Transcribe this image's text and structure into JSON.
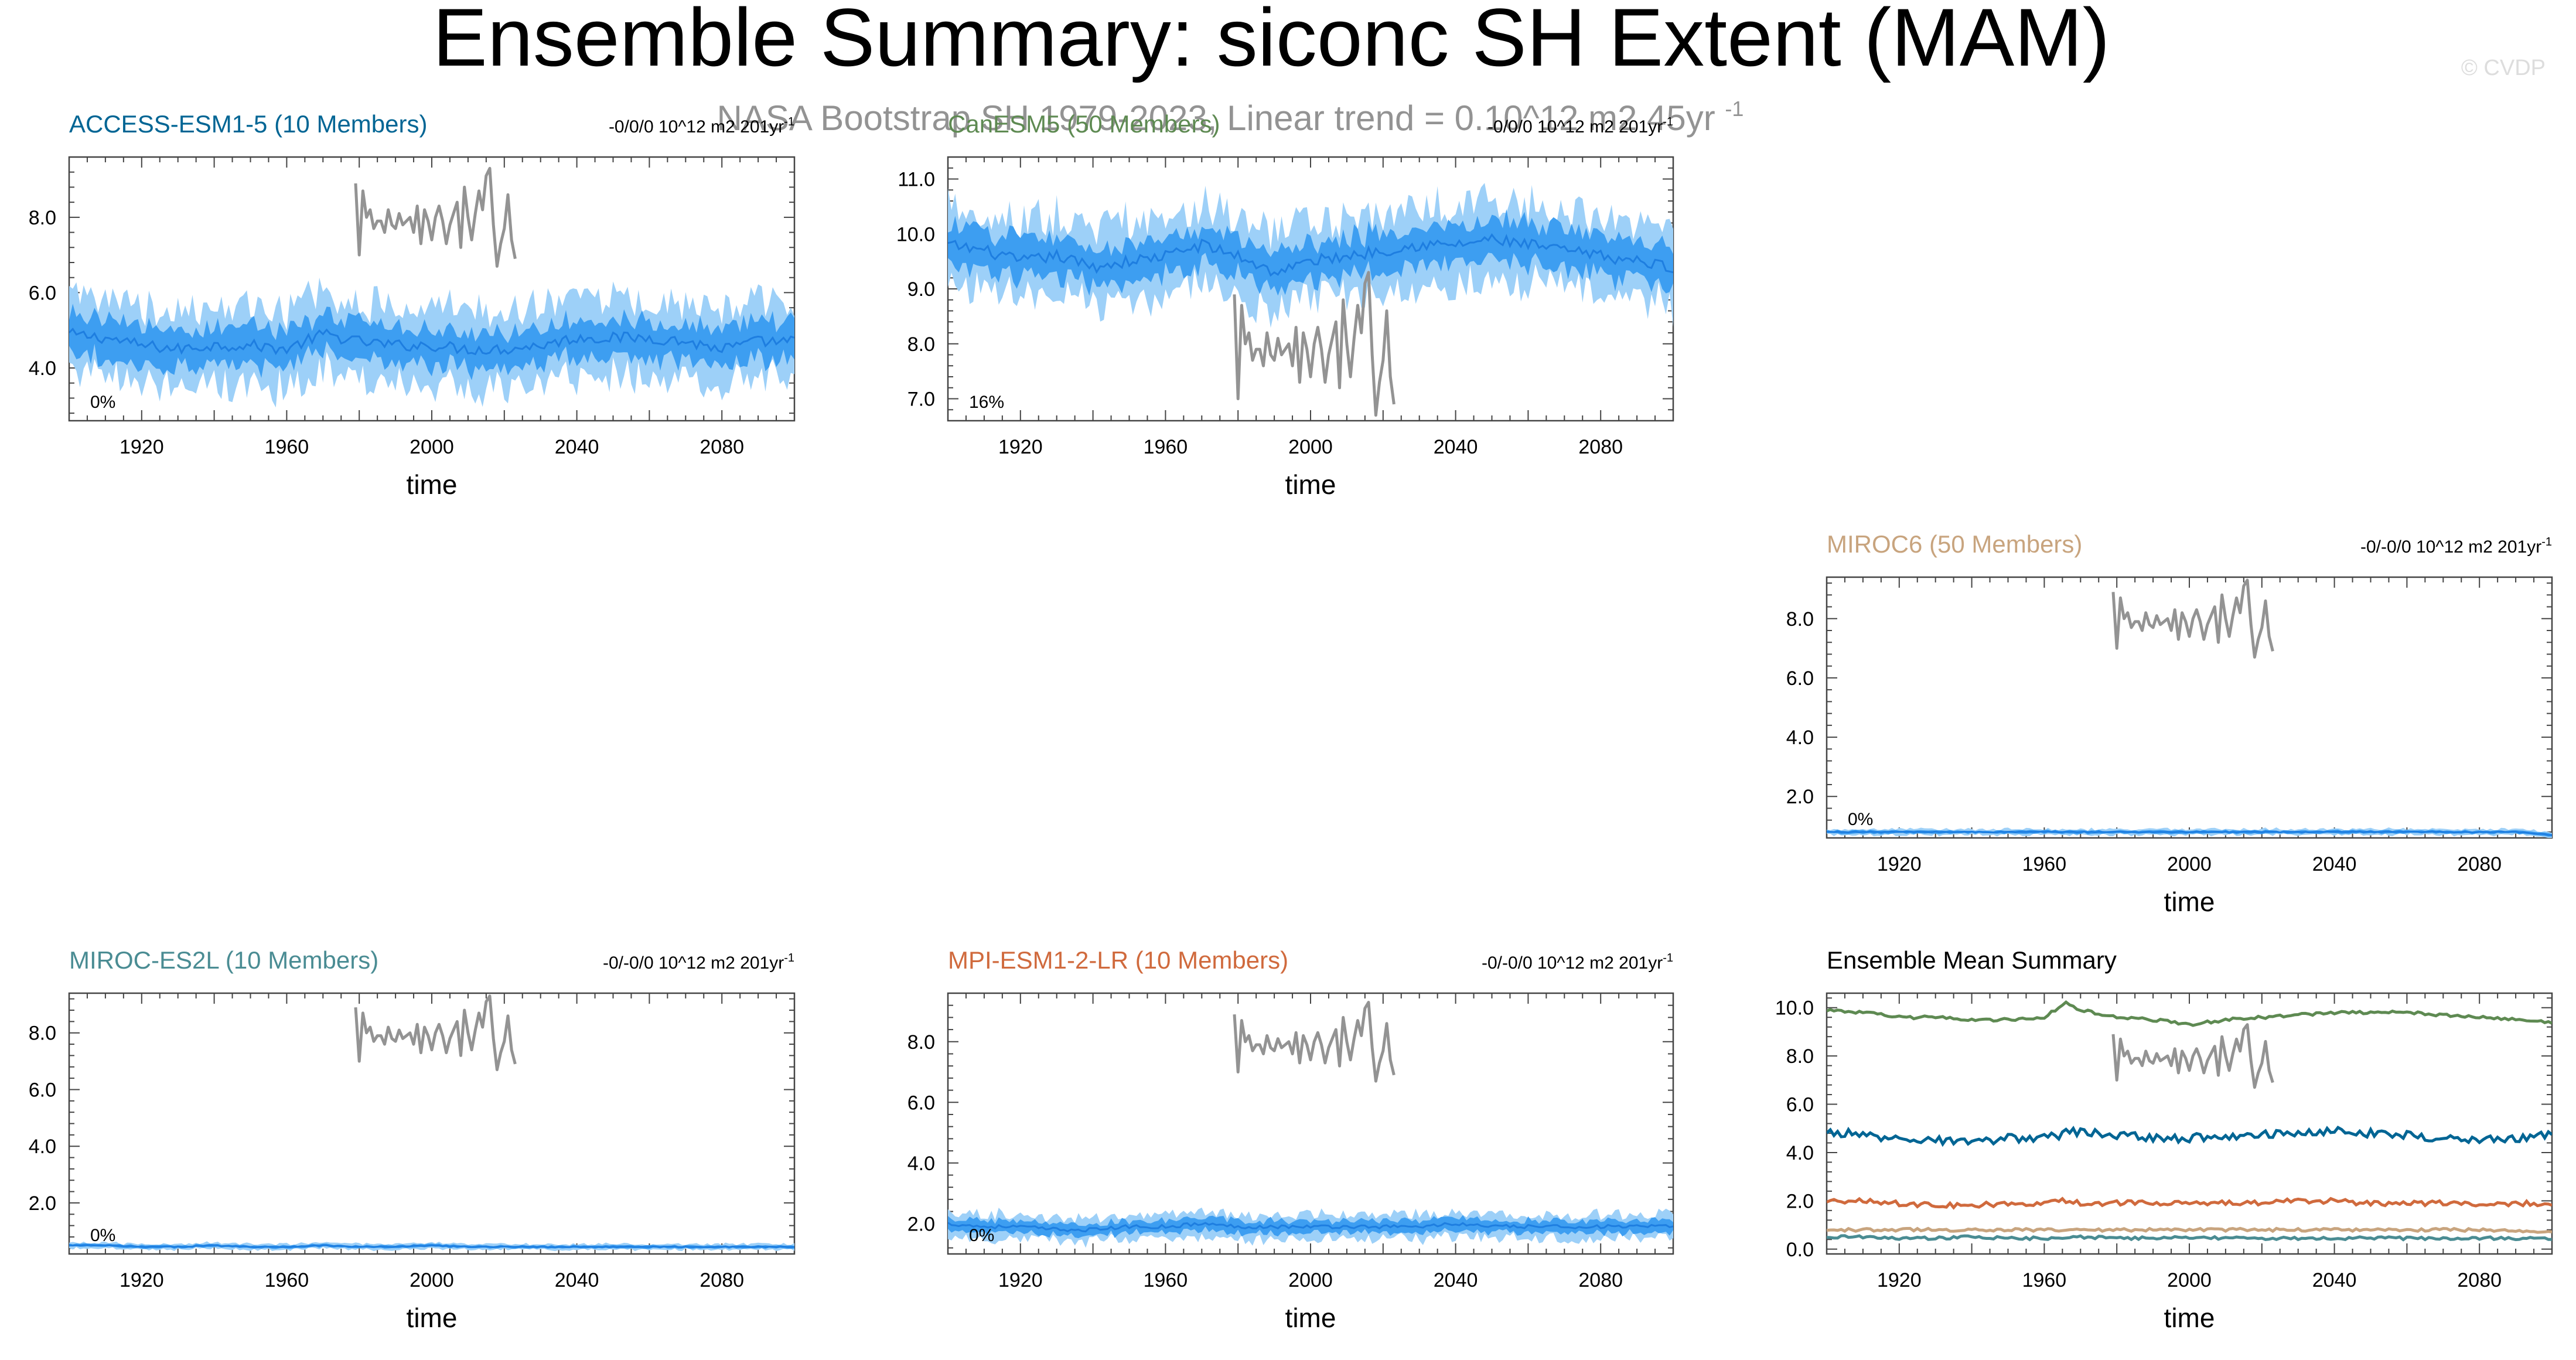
{
  "title": "Ensemble Summary: siconc SH Extent (MAM)",
  "subtitle": "NASA Bootstrap SH 1979-2023, Linear trend = 0.10^12 m2 45yr",
  "subtitle_sup": "-1",
  "watermark": "© CVDP",
  "colors": {
    "band_outer": "#9dd0f8",
    "band_inner": "#3d9ef1",
    "mean_line": "#1e7ee0",
    "obs_line": "#939393",
    "axis": "#444444"
  },
  "obs": {
    "name": "NASA Bootstrap SH",
    "years": [
      1979,
      2023
    ],
    "values": [
      8.9,
      7.0,
      8.7,
      8.0,
      8.2,
      7.7,
      7.9,
      7.9,
      7.6,
      8.2,
      7.8,
      7.7,
      8.1,
      7.8,
      7.9,
      8.0,
      7.6,
      8.3,
      7.3,
      8.2,
      7.9,
      7.4,
      8.0,
      8.3,
      7.9,
      7.3,
      7.8,
      8.1,
      8.4,
      7.2,
      8.8,
      8.0,
      7.4,
      8.1,
      8.7,
      8.2,
      9.1,
      9.3,
      7.8,
      6.7,
      7.3,
      7.7,
      8.6,
      7.4,
      6.9
    ]
  },
  "chart_data": [
    {
      "type": "area",
      "panel": "ACCESS-ESM1-5",
      "label": "ACCESS-ESM1-5 (10 Members)",
      "label_color": "#006594",
      "trend_label": "-0/0/0 10^12 m2 201yr",
      "trend_sup": "-1",
      "percent_label": "0%",
      "xlabel": "time",
      "x_range": [
        1900,
        2100
      ],
      "x_ticks": [
        1920,
        1960,
        2000,
        2040,
        2080
      ],
      "ylim": [
        2.6,
        9.6
      ],
      "y_ticks": [
        "4.0",
        "6.0",
        "8.0"
      ],
      "ensemble_mean": 4.7,
      "band_inner_half_width": 0.5,
      "band_outer_half_width": 1.0,
      "series": [
        {
          "name": "ACCESS-ESM1-5 (10 Members)",
          "values": [
            4.9,
            4.8,
            4.6,
            4.5,
            4.6,
            4.6,
            4.5,
            4.9,
            4.7,
            4.6,
            4.6,
            4.5,
            4.5,
            4.6,
            4.8,
            4.8,
            4.8,
            4.7,
            4.5,
            4.7,
            4.7
          ]
        }
      ],
      "series_x": [
        1900,
        1910,
        1920,
        1930,
        1940,
        1950,
        1960,
        1970,
        1980,
        1990,
        2000,
        2010,
        2020,
        2030,
        2040,
        2050,
        2060,
        2070,
        2080,
        2090,
        2100
      ]
    },
    {
      "type": "area",
      "panel": "CanESM5",
      "label": "CanESM5 (50 Members)",
      "label_color": "#5e8a52",
      "trend_label": "-0/0/0 10^12 m2 201yr",
      "trend_sup": "-1",
      "percent_label": "16%",
      "xlabel": "time",
      "x_range": [
        1900,
        2100
      ],
      "x_ticks": [
        1920,
        1960,
        2000,
        2040,
        2080
      ],
      "ylim": [
        6.6,
        11.4
      ],
      "y_ticks": [
        "7.0",
        "8.0",
        "9.0",
        "10.0",
        "11.0"
      ],
      "ensemble_mean": 9.6,
      "band_inner_half_width": 0.35,
      "band_outer_half_width": 0.7,
      "series": [
        {
          "name": "CanESM5 (50 Members)",
          "values": [
            9.8,
            9.7,
            9.5,
            9.6,
            9.4,
            9.5,
            9.6,
            9.8,
            9.6,
            9.3,
            9.5,
            9.6,
            9.7,
            9.8,
            9.8,
            9.9,
            9.8,
            9.7,
            9.6,
            9.5,
            9.4
          ]
        }
      ],
      "series_x": [
        1900,
        1910,
        1920,
        1930,
        1940,
        1950,
        1960,
        1970,
        1980,
        1990,
        2000,
        2010,
        2020,
        2030,
        2040,
        2050,
        2060,
        2070,
        2080,
        2090,
        2100
      ]
    },
    {
      "type": "area",
      "panel": "MIROC6",
      "label": "MIROC6 (50 Members)",
      "label_color": "#c8a47e",
      "trend_label": "-0/-0/0 10^12 m2 201yr",
      "trend_sup": "-1",
      "percent_label": "0%",
      "xlabel": "time",
      "x_range": [
        1900,
        2100
      ],
      "x_ticks": [
        1920,
        1960,
        2000,
        2040,
        2080
      ],
      "ylim": [
        0.6,
        9.4
      ],
      "y_ticks": [
        "2.0",
        "4.0",
        "6.0",
        "8.0"
      ],
      "ensemble_mean": 0.8,
      "band_inner_half_width": 0.05,
      "band_outer_half_width": 0.1,
      "series": [
        {
          "name": "MIROC6 (50 Members)",
          "values": [
            0.8,
            0.8,
            0.8,
            0.8,
            0.8,
            0.8,
            0.8,
            0.8,
            0.8,
            0.8,
            0.8,
            0.8,
            0.8,
            0.8,
            0.8,
            0.8,
            0.8,
            0.8,
            0.8,
            0.8,
            0.7
          ]
        }
      ],
      "series_x": [
        1900,
        1910,
        1920,
        1930,
        1940,
        1950,
        1960,
        1970,
        1980,
        1990,
        2000,
        2010,
        2020,
        2030,
        2040,
        2050,
        2060,
        2070,
        2080,
        2090,
        2100
      ]
    },
    {
      "type": "area",
      "panel": "MIROC-ES2L",
      "label": "MIROC-ES2L (10 Members)",
      "label_color": "#4a8c93",
      "trend_label": "-0/-0/0 10^12 m2 201yr",
      "trend_sup": "-1",
      "percent_label": "0%",
      "xlabel": "time",
      "x_range": [
        1900,
        2100
      ],
      "x_ticks": [
        1920,
        1960,
        2000,
        2040,
        2080
      ],
      "ylim": [
        0.2,
        9.4
      ],
      "y_ticks": [
        "2.0",
        "4.0",
        "6.0",
        "8.0"
      ],
      "ensemble_mean": 0.45,
      "band_inner_half_width": 0.05,
      "band_outer_half_width": 0.1,
      "series": [
        {
          "name": "MIROC-ES2L (10 Members)",
          "values": [
            0.5,
            0.5,
            0.45,
            0.45,
            0.5,
            0.45,
            0.45,
            0.5,
            0.45,
            0.45,
            0.5,
            0.45,
            0.45,
            0.45,
            0.45,
            0.45,
            0.45,
            0.45,
            0.45,
            0.45,
            0.45
          ]
        }
      ],
      "series_x": [
        1900,
        1910,
        1920,
        1930,
        1940,
        1950,
        1960,
        1970,
        1980,
        1990,
        2000,
        2010,
        2020,
        2030,
        2040,
        2050,
        2060,
        2070,
        2080,
        2090,
        2100
      ]
    },
    {
      "type": "area",
      "panel": "MPI-ESM1-2-LR",
      "label": "MPI-ESM1-2-LR (10 Members)",
      "label_color": "#d06a3d",
      "trend_label": "-0/-0/0 10^12 m2 201yr",
      "trend_sup": "-1",
      "percent_label": "0%",
      "xlabel": "time",
      "x_range": [
        1900,
        2100
      ],
      "x_ticks": [
        1920,
        1960,
        2000,
        2040,
        2080
      ],
      "ylim": [
        1.0,
        9.6
      ],
      "y_ticks": [
        "2.0",
        "4.0",
        "6.0",
        "8.0"
      ],
      "ensemble_mean": 1.9,
      "band_inner_half_width": 0.2,
      "band_outer_half_width": 0.4,
      "series": [
        {
          "name": "MPI-ESM1-2-LR (10 Members)",
          "values": [
            2.0,
            1.9,
            1.9,
            1.8,
            1.8,
            1.9,
            1.9,
            2.0,
            1.9,
            1.9,
            1.9,
            1.9,
            1.9,
            1.9,
            2.0,
            1.9,
            1.9,
            1.9,
            1.9,
            1.9,
            1.9
          ]
        }
      ],
      "series_x": [
        1900,
        1910,
        1920,
        1930,
        1940,
        1950,
        1960,
        1970,
        1980,
        1990,
        2000,
        2010,
        2020,
        2030,
        2040,
        2050,
        2060,
        2070,
        2080,
        2090,
        2100
      ]
    },
    {
      "type": "line",
      "panel": "Ensemble Mean Summary",
      "label": "Ensemble Mean Summary",
      "label_color": "#000000",
      "xlabel": "time",
      "x_range": [
        1900,
        2100
      ],
      "x_ticks": [
        1920,
        1960,
        2000,
        2040,
        2080
      ],
      "ylim": [
        -0.2,
        10.6
      ],
      "y_ticks": [
        "0.0",
        "2.0",
        "4.0",
        "6.0",
        "8.0",
        "10.0"
      ],
      "x": [
        1900,
        1910,
        1920,
        1930,
        1940,
        1950,
        1960,
        1966,
        1970,
        1980,
        1990,
        2000,
        2010,
        2020,
        2030,
        2040,
        2050,
        2060,
        2070,
        2080,
        2090,
        2100
      ],
      "series": [
        {
          "color": "#5e8a52",
          "values": [
            9.9,
            9.8,
            9.6,
            9.6,
            9.5,
            9.5,
            9.6,
            10.2,
            9.9,
            9.6,
            9.5,
            9.3,
            9.5,
            9.6,
            9.7,
            9.8,
            9.8,
            9.8,
            9.7,
            9.6,
            9.5,
            9.4
          ]
        },
        {
          "color": "#006594",
          "values": [
            4.9,
            4.7,
            4.6,
            4.5,
            4.4,
            4.6,
            4.6,
            4.8,
            4.9,
            4.7,
            4.6,
            4.6,
            4.7,
            4.8,
            4.8,
            4.9,
            4.8,
            4.7,
            4.6,
            4.5,
            4.6,
            4.7
          ]
        },
        {
          "color": "#d06a3d",
          "values": [
            2.0,
            2.0,
            1.9,
            1.8,
            1.8,
            1.9,
            1.9,
            2.0,
            1.9,
            1.9,
            1.9,
            1.9,
            1.9,
            1.9,
            2.0,
            2.0,
            1.9,
            1.9,
            1.9,
            1.9,
            1.9,
            1.9
          ]
        },
        {
          "color": "#c8a47e",
          "values": [
            0.8,
            0.8,
            0.8,
            0.8,
            0.8,
            0.8,
            0.8,
            0.8,
            0.8,
            0.8,
            0.8,
            0.8,
            0.8,
            0.8,
            0.8,
            0.8,
            0.8,
            0.8,
            0.8,
            0.8,
            0.75,
            0.7
          ]
        },
        {
          "color": "#4a8c93",
          "values": [
            0.5,
            0.5,
            0.45,
            0.45,
            0.5,
            0.45,
            0.45,
            0.45,
            0.5,
            0.45,
            0.45,
            0.5,
            0.45,
            0.45,
            0.45,
            0.45,
            0.45,
            0.45,
            0.45,
            0.45,
            0.45,
            0.45
          ]
        }
      ]
    }
  ]
}
